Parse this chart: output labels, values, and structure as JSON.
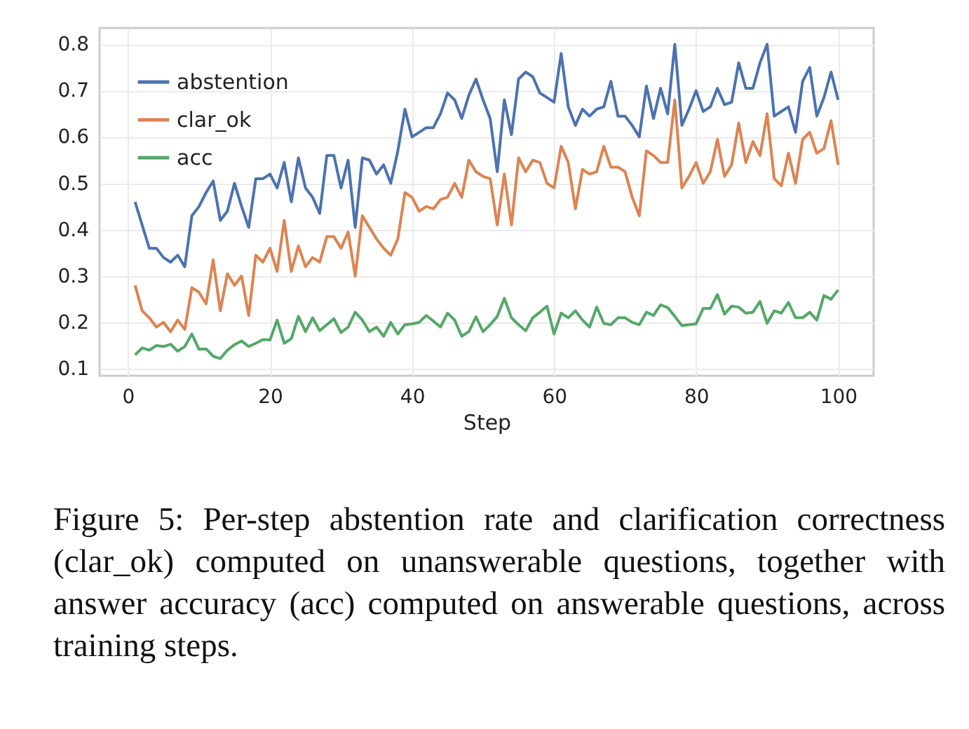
{
  "chart_data": {
    "type": "line",
    "xlabel": "Step",
    "xlim": [
      -4,
      105
    ],
    "ylim": [
      0.085,
      0.835
    ],
    "xticks": [
      0,
      20,
      40,
      60,
      80,
      100
    ],
    "yticks": [
      0.1,
      0.2,
      0.3,
      0.4,
      0.5,
      0.6,
      0.7,
      0.8
    ],
    "grid": true,
    "legend": "top left",
    "x": [
      1,
      2,
      3,
      4,
      5,
      6,
      7,
      8,
      9,
      10,
      11,
      12,
      13,
      14,
      15,
      16,
      17,
      18,
      19,
      20,
      21,
      22,
      23,
      24,
      25,
      26,
      27,
      28,
      29,
      30,
      31,
      32,
      33,
      34,
      35,
      36,
      37,
      38,
      39,
      40,
      41,
      42,
      43,
      44,
      45,
      46,
      47,
      48,
      49,
      50,
      51,
      52,
      53,
      54,
      55,
      56,
      57,
      58,
      59,
      60,
      61,
      62,
      63,
      64,
      65,
      66,
      67,
      68,
      69,
      70,
      71,
      72,
      73,
      74,
      75,
      76,
      77,
      78,
      79,
      80,
      81,
      82,
      83,
      84,
      85,
      86,
      87,
      88,
      89,
      90,
      91,
      92,
      93,
      94,
      95,
      96,
      97,
      98,
      99,
      100
    ],
    "series": [
      {
        "name": "abstention",
        "color": "#4c72b0",
        "values": [
          0.46,
          0.41,
          0.36,
          0.36,
          0.34,
          0.33,
          0.345,
          0.32,
          0.43,
          0.45,
          0.48,
          0.505,
          0.42,
          0.44,
          0.5,
          0.45,
          0.405,
          0.51,
          0.51,
          0.52,
          0.49,
          0.545,
          0.46,
          0.555,
          0.49,
          0.47,
          0.435,
          0.56,
          0.56,
          0.49,
          0.55,
          0.405,
          0.555,
          0.55,
          0.52,
          0.54,
          0.5,
          0.57,
          0.66,
          0.6,
          0.61,
          0.62,
          0.62,
          0.65,
          0.695,
          0.68,
          0.64,
          0.69,
          0.725,
          0.68,
          0.64,
          0.525,
          0.68,
          0.605,
          0.725,
          0.74,
          0.73,
          0.695,
          0.685,
          0.675,
          0.78,
          0.665,
          0.625,
          0.66,
          0.645,
          0.66,
          0.665,
          0.72,
          0.645,
          0.645,
          0.625,
          0.6,
          0.71,
          0.64,
          0.705,
          0.65,
          0.8,
          0.625,
          0.66,
          0.7,
          0.655,
          0.665,
          0.705,
          0.67,
          0.675,
          0.76,
          0.705,
          0.705,
          0.76,
          0.8,
          0.645,
          0.655,
          0.665,
          0.61,
          0.72,
          0.75,
          0.645,
          0.685,
          0.74,
          0.68
        ]
      },
      {
        "name": "clar_ok",
        "color": "#dd8452",
        "values": [
          0.28,
          0.225,
          0.21,
          0.19,
          0.2,
          0.18,
          0.205,
          0.185,
          0.275,
          0.265,
          0.24,
          0.335,
          0.225,
          0.305,
          0.28,
          0.3,
          0.215,
          0.345,
          0.33,
          0.36,
          0.31,
          0.42,
          0.31,
          0.365,
          0.32,
          0.34,
          0.33,
          0.385,
          0.385,
          0.36,
          0.395,
          0.3,
          0.43,
          0.405,
          0.38,
          0.36,
          0.345,
          0.38,
          0.48,
          0.47,
          0.44,
          0.45,
          0.445,
          0.465,
          0.47,
          0.5,
          0.47,
          0.55,
          0.525,
          0.515,
          0.51,
          0.41,
          0.52,
          0.41,
          0.555,
          0.525,
          0.55,
          0.545,
          0.5,
          0.49,
          0.58,
          0.545,
          0.445,
          0.53,
          0.52,
          0.525,
          0.58,
          0.535,
          0.535,
          0.525,
          0.47,
          0.43,
          0.57,
          0.56,
          0.545,
          0.545,
          0.68,
          0.49,
          0.515,
          0.545,
          0.5,
          0.525,
          0.595,
          0.515,
          0.54,
          0.63,
          0.545,
          0.59,
          0.56,
          0.65,
          0.51,
          0.495,
          0.565,
          0.5,
          0.595,
          0.61,
          0.565,
          0.575,
          0.635,
          0.54
        ]
      },
      {
        "name": "acc",
        "color": "#55a868",
        "values": [
          0.13,
          0.145,
          0.14,
          0.15,
          0.148,
          0.153,
          0.138,
          0.148,
          0.175,
          0.142,
          0.143,
          0.127,
          0.122,
          0.14,
          0.152,
          0.16,
          0.148,
          0.155,
          0.163,
          0.162,
          0.205,
          0.155,
          0.165,
          0.213,
          0.18,
          0.21,
          0.182,
          0.195,
          0.208,
          0.178,
          0.19,
          0.222,
          0.205,
          0.18,
          0.19,
          0.17,
          0.2,
          0.175,
          0.195,
          0.197,
          0.2,
          0.215,
          0.203,
          0.19,
          0.22,
          0.205,
          0.17,
          0.18,
          0.212,
          0.18,
          0.195,
          0.213,
          0.252,
          0.21,
          0.195,
          0.182,
          0.21,
          0.222,
          0.235,
          0.175,
          0.22,
          0.21,
          0.225,
          0.205,
          0.19,
          0.233,
          0.198,
          0.195,
          0.21,
          0.21,
          0.2,
          0.195,
          0.222,
          0.215,
          0.238,
          0.232,
          0.213,
          0.193,
          0.195,
          0.197,
          0.23,
          0.23,
          0.26,
          0.218,
          0.235,
          0.233,
          0.22,
          0.222,
          0.245,
          0.198,
          0.225,
          0.22,
          0.243,
          0.21,
          0.21,
          0.222,
          0.205,
          0.258,
          0.25,
          0.27
        ]
      }
    ],
    "annotations": [
      "Figure 5: Per-step abstention rate and clarification correctness (clar_ok) computed on unanswerable questions, together with answer accuracy (acc) computed on answerable questions, across training steps."
    ]
  }
}
